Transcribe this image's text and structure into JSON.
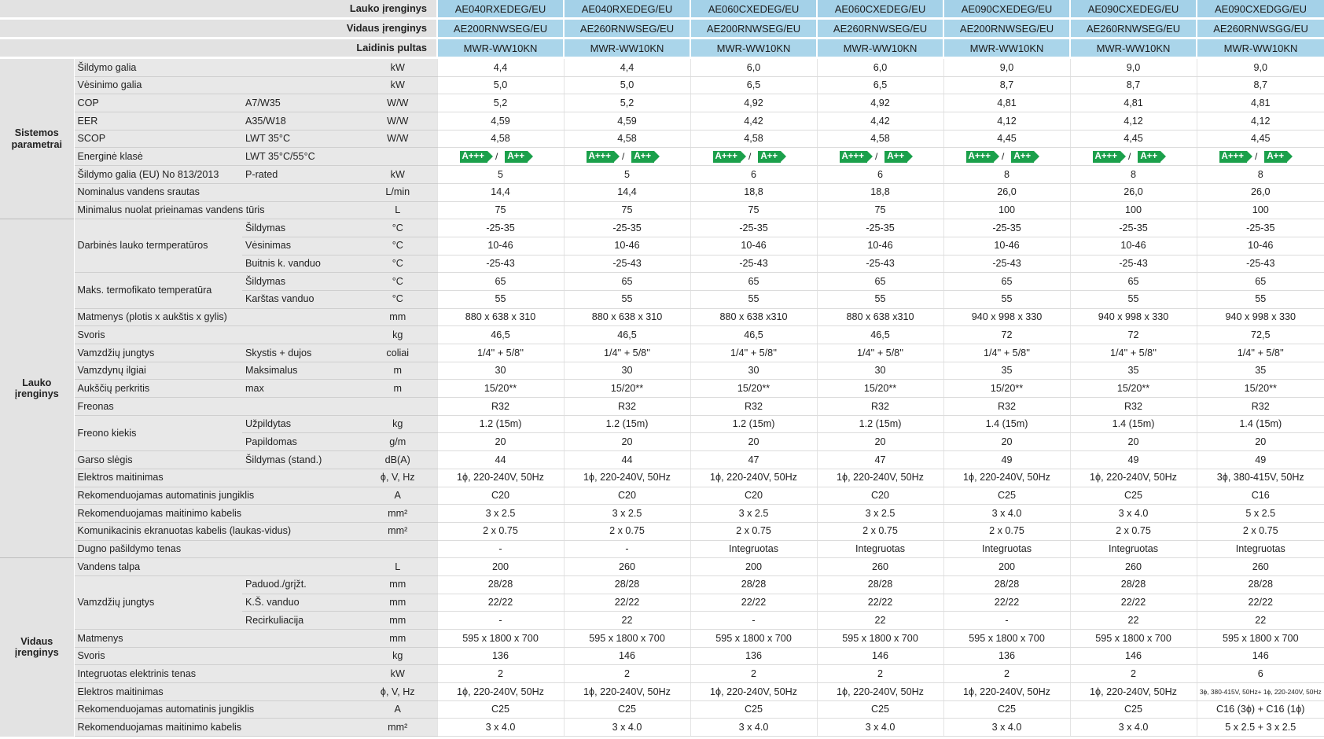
{
  "header": {
    "rows": [
      {
        "label": "Lauko įrenginys",
        "models": [
          "AE040RXEDEG/EU",
          "AE040RXEDEG/EU",
          "AE060CXEDEG/EU",
          "AE060CXEDEG/EU",
          "AE090CXEDEG/EU",
          "AE090CXEDEG/EU",
          "AE090CXEDGG/EU"
        ]
      },
      {
        "label": "Vidaus įrenginys",
        "models": [
          "AE200RNWSEG/EU",
          "AE260RNWSEG/EU",
          "AE200RNWSEG/EU",
          "AE260RNWSEG/EU",
          "AE200RNWSEG/EU",
          "AE260RNWSEG/EU",
          "AE260RNWSGG/EU"
        ]
      },
      {
        "label": "Laidinis pultas",
        "models": [
          "MWR-WW10KN",
          "MWR-WW10KN",
          "MWR-WW10KN",
          "MWR-WW10KN",
          "MWR-WW10KN",
          "MWR-WW10KN",
          "MWR-WW10KN"
        ]
      }
    ]
  },
  "groups": [
    "Sistemos parametrai",
    "Lauko įrenginys",
    "Vidaus įrenginys"
  ],
  "rows": [
    {
      "g": 0,
      "label": "Šildymo galia",
      "sub": "",
      "unit": "kW",
      "values": [
        "4,4",
        "4,4",
        "6,0",
        "6,0",
        "9,0",
        "9,0",
        "9,0"
      ]
    },
    {
      "g": 0,
      "label": "Vėsinimo galia",
      "sub": "",
      "unit": "kW",
      "values": [
        "5,0",
        "5,0",
        "6,5",
        "6,5",
        "8,7",
        "8,7",
        "8,7"
      ]
    },
    {
      "g": 0,
      "label": "COP",
      "sub": "A7/W35",
      "unit": "W/W",
      "values": [
        "5,2",
        "5,2",
        "4,92",
        "4,92",
        "4,81",
        "4,81",
        "4,81"
      ]
    },
    {
      "g": 0,
      "label": "EER",
      "sub": "A35/W18",
      "unit": "W/W",
      "values": [
        "4,59",
        "4,59",
        "4,42",
        "4,42",
        "4,12",
        "4,12",
        "4,12"
      ]
    },
    {
      "g": 0,
      "label": "SCOP",
      "sub": "LWT 35°C",
      "unit": "W/W",
      "values": [
        "4,58",
        "4,58",
        "4,58",
        "4,58",
        "4,45",
        "4,45",
        "4,45"
      ]
    },
    {
      "g": 0,
      "label": "Energinė klasė",
      "sub": "LWT 35°C/55°C",
      "unit": "",
      "energy": true,
      "badge_a": "A+++",
      "badge_b": "A++",
      "values": [
        "",
        "",
        "",
        "",
        "",
        "",
        ""
      ]
    },
    {
      "g": 0,
      "label": "Šildymo galia (EU) No 813/2013",
      "sub": "P-rated",
      "unit": "kW",
      "values": [
        "5",
        "5",
        "6",
        "6",
        "8",
        "8",
        "8"
      ]
    },
    {
      "g": 0,
      "label": "Nominalus vandens srautas",
      "sub": "",
      "unit": "L/min",
      "values": [
        "14,4",
        "14,4",
        "18,8",
        "18,8",
        "26,0",
        "26,0",
        "26,0"
      ]
    },
    {
      "g": 0,
      "label": "Minimalus nuolat prieinamas vandens tūris",
      "sub": "",
      "unit": "L",
      "values": [
        "75",
        "75",
        "75",
        "75",
        "100",
        "100",
        "100"
      ]
    },
    {
      "g": 1,
      "label": "Darbinės lauko termperatūros",
      "sub": "Šildymas",
      "unit": "°C",
      "values": [
        "-25-35",
        "-25-35",
        "-25-35",
        "-25-35",
        "-25-35",
        "-25-35",
        "-25-35"
      ]
    },
    {
      "g": 1,
      "label": "",
      "sub": "Vėsinimas",
      "unit": "°C",
      "values": [
        "10-46",
        "10-46",
        "10-46",
        "10-46",
        "10-46",
        "10-46",
        "10-46"
      ]
    },
    {
      "g": 1,
      "label": "",
      "sub": "Buitnis k. vanduo",
      "unit": "°C",
      "values": [
        "-25-43",
        "-25-43",
        "-25-43",
        "-25-43",
        "-25-43",
        "-25-43",
        "-25-43"
      ]
    },
    {
      "g": 1,
      "label": "Maks. termofikato temperatūra",
      "sub": "Šildymas",
      "unit": "°C",
      "values": [
        "65",
        "65",
        "65",
        "65",
        "65",
        "65",
        "65"
      ]
    },
    {
      "g": 1,
      "label": "",
      "sub": "Karštas vanduo",
      "unit": "°C",
      "values": [
        "55",
        "55",
        "55",
        "55",
        "55",
        "55",
        "55"
      ]
    },
    {
      "g": 1,
      "label": "Matmenys (plotis x aukštis x gylis)",
      "sub": "",
      "unit": "mm",
      "values": [
        "880 x 638 x 310",
        "880 x 638 x 310",
        "880 x 638 x310",
        "880 x 638 x310",
        "940 x 998 x 330",
        "940 x 998 x 330",
        "940 x 998 x 330"
      ]
    },
    {
      "g": 1,
      "label": "Svoris",
      "sub": "",
      "unit": "kg",
      "values": [
        "46,5",
        "46,5",
        "46,5",
        "46,5",
        "72",
        "72",
        "72,5"
      ]
    },
    {
      "g": 1,
      "label": "Vamzdžių jungtys",
      "sub": "Skystis + dujos",
      "unit": "coliai",
      "values": [
        "1/4'' + 5/8''",
        "1/4'' + 5/8''",
        "1/4'' + 5/8''",
        "1/4'' + 5/8''",
        "1/4'' + 5/8''",
        "1/4'' + 5/8''",
        "1/4'' + 5/8''"
      ]
    },
    {
      "g": 1,
      "label": "Vamzdynų ilgiai",
      "sub": "Maksimalus",
      "unit": "m",
      "values": [
        "30",
        "30",
        "30",
        "30",
        "35",
        "35",
        "35"
      ]
    },
    {
      "g": 1,
      "label": "Aukščių perkritis",
      "sub": "max",
      "unit": "m",
      "values": [
        "15/20**",
        "15/20**",
        "15/20**",
        "15/20**",
        "15/20**",
        "15/20**",
        "15/20**"
      ]
    },
    {
      "g": 1,
      "label": "Freonas",
      "sub": "",
      "unit": "",
      "values": [
        "R32",
        "R32",
        "R32",
        "R32",
        "R32",
        "R32",
        "R32"
      ]
    },
    {
      "g": 1,
      "label": "Freono kiekis",
      "sub": "Užpildytas",
      "unit": "kg",
      "values": [
        "1.2 (15m)",
        "1.2 (15m)",
        "1.2 (15m)",
        "1.2 (15m)",
        "1.4 (15m)",
        "1.4 (15m)",
        "1.4 (15m)"
      ]
    },
    {
      "g": 1,
      "label": "",
      "sub": "Papildomas",
      "unit": "g/m",
      "values": [
        "20",
        "20",
        "20",
        "20",
        "20",
        "20",
        "20"
      ]
    },
    {
      "g": 1,
      "label": "Garso slėgis",
      "sub": "Šildymas (stand.)",
      "unit": "dB(A)",
      "values": [
        "44",
        "44",
        "47",
        "47",
        "49",
        "49",
        "49"
      ]
    },
    {
      "g": 1,
      "label": "Elektros maitinimas",
      "sub": "",
      "unit": "ϕ, V, Hz",
      "values": [
        "1ϕ, 220-240V, 50Hz",
        "1ϕ, 220-240V, 50Hz",
        "1ϕ, 220-240V, 50Hz",
        "1ϕ, 220-240V, 50Hz",
        "1ϕ, 220-240V, 50Hz",
        "1ϕ, 220-240V, 50Hz",
        "3ϕ, 380-415V, 50Hz"
      ]
    },
    {
      "g": 1,
      "label": "Rekomenduojamas automatinis jungiklis",
      "sub": "",
      "unit": "A",
      "values": [
        "C20",
        "C20",
        "C20",
        "C20",
        "C25",
        "C25",
        "C16"
      ]
    },
    {
      "g": 1,
      "label": "Rekomenduojamas maitinimo kabelis",
      "sub": "",
      "unit": "mm²",
      "values": [
        "3 x 2.5",
        "3 x 2.5",
        "3 x 2.5",
        "3 x 2.5",
        "3 x 4.0",
        "3 x 4.0",
        "5 x 2.5"
      ]
    },
    {
      "g": 1,
      "label": "Komunikacinis ekranuotas kabelis (laukas-vidus)",
      "sub": "",
      "unit": "mm²",
      "values": [
        "2 x 0.75",
        "2 x 0.75",
        "2 x 0.75",
        "2 x 0.75",
        "2 x 0.75",
        "2 x 0.75",
        "2 x 0.75"
      ]
    },
    {
      "g": 1,
      "label": "Dugno pašildymo tenas",
      "sub": "",
      "unit": "",
      "values": [
        "-",
        "-",
        "Integruotas",
        "Integruotas",
        "Integruotas",
        "Integruotas",
        "Integruotas"
      ]
    },
    {
      "g": 2,
      "label": "Vandens talpa",
      "sub": "",
      "unit": "L",
      "values": [
        "200",
        "260",
        "200",
        "260",
        "200",
        "260",
        "260"
      ]
    },
    {
      "g": 2,
      "label": "Vamzdžių jungtys",
      "sub": "Paduod./grįžt.",
      "unit": "mm",
      "values": [
        "28/28",
        "28/28",
        "28/28",
        "28/28",
        "28/28",
        "28/28",
        "28/28"
      ]
    },
    {
      "g": 2,
      "label": "",
      "sub": "K.Š. vanduo",
      "unit": "mm",
      "values": [
        "22/22",
        "22/22",
        "22/22",
        "22/22",
        "22/22",
        "22/22",
        "22/22"
      ]
    },
    {
      "g": 2,
      "label": "",
      "sub": "Recirkuliacija",
      "unit": "mm",
      "values": [
        "-",
        "22",
        "-",
        "22",
        "-",
        "22",
        "22"
      ]
    },
    {
      "g": 2,
      "label": "Matmenys",
      "sub": "",
      "unit": "mm",
      "values": [
        "595 x 1800 x 700",
        "595 x 1800 x 700",
        "595 x 1800 x 700",
        "595 x 1800 x 700",
        "595 x 1800 x 700",
        "595 x 1800 x 700",
        "595 x 1800 x 700"
      ]
    },
    {
      "g": 2,
      "label": "Svoris",
      "sub": "",
      "unit": "kg",
      "values": [
        "136",
        "146",
        "136",
        "146",
        "136",
        "146",
        "146"
      ]
    },
    {
      "g": 2,
      "label": "Integruotas elektrinis tenas",
      "sub": "",
      "unit": "kW",
      "values": [
        "2",
        "2",
        "2",
        "2",
        "2",
        "2",
        "6"
      ]
    },
    {
      "g": 2,
      "label": "Elektros maitinimas",
      "sub": "",
      "unit": "ϕ, V, Hz",
      "values": [
        "1ϕ, 220-240V, 50Hz",
        "1ϕ, 220-240V, 50Hz",
        "1ϕ, 220-240V, 50Hz",
        "1ϕ, 220-240V, 50Hz",
        "1ϕ, 220-240V, 50Hz",
        "1ϕ, 220-240V, 50Hz",
        "3ϕ, 380-415V, 50Hz+ 1ϕ, 220-240V, 50Hz"
      ]
    },
    {
      "g": 2,
      "label": "Rekomenduojamas automatinis jungiklis",
      "sub": "",
      "unit": "A",
      "values": [
        "C25",
        "C25",
        "C25",
        "C25",
        "C25",
        "C25",
        "C16 (3ϕ) + C16 (1ϕ)"
      ]
    },
    {
      "g": 2,
      "label": "Rekomenduojamas maitinimo kabelis",
      "sub": "",
      "unit": "mm²",
      "values": [
        "3 x 4.0",
        "3 x 4.0",
        "3 x 4.0",
        "3 x 4.0",
        "3 x 4.0",
        "3 x 4.0",
        "5 x 2.5 + 3 x 2.5"
      ]
    }
  ]
}
